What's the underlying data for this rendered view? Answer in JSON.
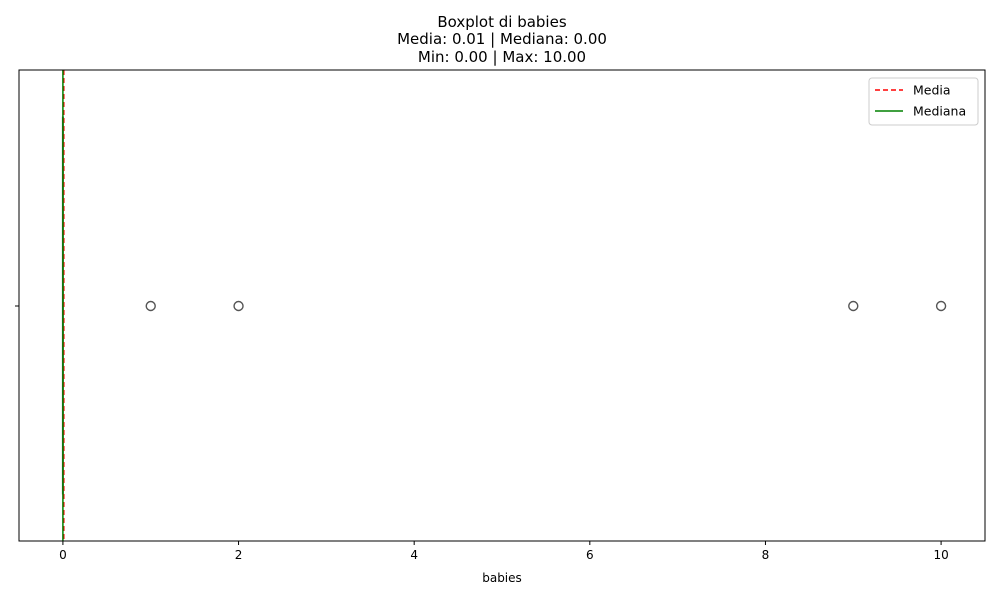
{
  "chart_data": {
    "type": "boxplot",
    "orientation": "horizontal",
    "title_lines": [
      "Boxplot di babies",
      "Media: 0.01 | Mediana: 0.00",
      "Min: 0.00 | Max: 10.00"
    ],
    "xlabel": "babies",
    "ylabel": "",
    "xlim": [
      -0.5,
      10.5
    ],
    "x_ticks": [
      0,
      2,
      4,
      6,
      8,
      10
    ],
    "x_tick_labels": [
      "0",
      "2",
      "4",
      "6",
      "8",
      "10"
    ],
    "grid": false,
    "box": {
      "min": 0,
      "q1": 0,
      "median": 0,
      "q3": 0,
      "max": 0
    },
    "outliers": [
      1,
      2,
      9,
      10
    ],
    "mean": 0.01,
    "median": 0.0,
    "data_min": 0.0,
    "data_max": 10.0,
    "legend": {
      "placement": "top-right",
      "entries": [
        {
          "label": "Media",
          "color": "#ff0000",
          "style": "dashed"
        },
        {
          "label": "Mediana",
          "color": "#008000",
          "style": "solid"
        }
      ]
    },
    "colors": {
      "mean_line": "#ff0000",
      "median_line": "#008000",
      "outlier_edge": "#555555",
      "axes": "#000000"
    }
  }
}
